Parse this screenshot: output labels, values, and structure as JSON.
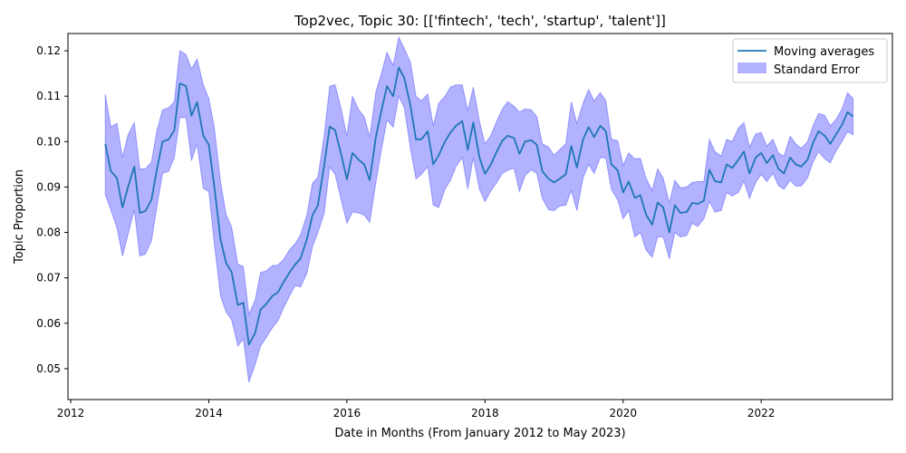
{
  "chart_data": {
    "type": "line",
    "title": "Top2vec, Topic 30: [['fintech', 'tech', 'startup', 'talent']]",
    "xlabel": "Date in Months (From January 2012 to May 2023)",
    "ylabel": "Topic Proportion",
    "xlim": [
      2011.96,
      2023.9
    ],
    "ylim": [
      0.0432,
      0.1238
    ],
    "x_ticks": [
      2012,
      2014,
      2016,
      2018,
      2020,
      2022
    ],
    "y_ticks": [
      0.05,
      0.06,
      0.07,
      0.08,
      0.09,
      0.1,
      0.11,
      0.12
    ],
    "y_tick_labels": [
      "0.05",
      "0.06",
      "0.07",
      "0.08",
      "0.09",
      "0.10",
      "0.11",
      "0.12"
    ],
    "legend_position": "top-right",
    "grid": false,
    "colors": {
      "line": "#1f77b4",
      "band": "#0000ff"
    },
    "legend": [
      {
        "label": "Moving averages",
        "kind": "line"
      },
      {
        "label": "Standard Error",
        "kind": "band"
      }
    ],
    "x": [
      2012.5,
      2012.58,
      2012.67,
      2012.75,
      2012.83,
      2012.92,
      2013.0,
      2013.08,
      2013.17,
      2013.25,
      2013.33,
      2013.42,
      2013.5,
      2013.58,
      2013.67,
      2013.75,
      2013.83,
      2013.92,
      2014.0,
      2014.08,
      2014.17,
      2014.25,
      2014.33,
      2014.42,
      2014.5,
      2014.58,
      2014.67,
      2014.75,
      2014.83,
      2014.92,
      2015.0,
      2015.08,
      2015.17,
      2015.25,
      2015.33,
      2015.42,
      2015.5,
      2015.58,
      2015.67,
      2015.75,
      2015.83,
      2015.92,
      2016.0,
      2016.08,
      2016.17,
      2016.25,
      2016.33,
      2016.42,
      2016.5,
      2016.58,
      2016.67,
      2016.75,
      2016.83,
      2016.92,
      2017.0,
      2017.08,
      2017.17,
      2017.25,
      2017.33,
      2017.42,
      2017.5,
      2017.58,
      2017.67,
      2017.75,
      2017.83,
      2017.92,
      2018.0,
      2018.08,
      2018.17,
      2018.25,
      2018.33,
      2018.42,
      2018.5,
      2018.58,
      2018.67,
      2018.75,
      2018.83,
      2018.92,
      2019.0,
      2019.08,
      2019.17,
      2019.25,
      2019.33,
      2019.42,
      2019.5,
      2019.58,
      2019.67,
      2019.75,
      2019.83,
      2019.92,
      2020.0,
      2020.08,
      2020.17,
      2020.25,
      2020.33,
      2020.42,
      2020.5,
      2020.58,
      2020.67,
      2020.75,
      2020.83,
      2020.92,
      2021.0,
      2021.08,
      2021.17,
      2021.25,
      2021.33,
      2021.42,
      2021.5,
      2021.58,
      2021.67,
      2021.75,
      2021.83,
      2021.92,
      2022.0,
      2022.08,
      2022.17,
      2022.25,
      2022.33,
      2022.42,
      2022.5,
      2022.58,
      2022.67,
      2022.75,
      2022.83,
      2022.92,
      2023.0,
      2023.08,
      2023.17,
      2023.25,
      2023.33
    ],
    "y": [
      0.0995,
      0.0935,
      0.092,
      0.0855,
      0.09,
      0.0945,
      0.0843,
      0.0847,
      0.0872,
      0.094,
      0.1,
      0.1005,
      0.1025,
      0.1128,
      0.1122,
      0.1057,
      0.1087,
      0.1013,
      0.0993,
      0.09,
      0.0785,
      0.0733,
      0.0713,
      0.064,
      0.0645,
      0.0553,
      0.0578,
      0.063,
      0.0642,
      0.066,
      0.0668,
      0.069,
      0.0712,
      0.0729,
      0.0743,
      0.0785,
      0.0837,
      0.086,
      0.0948,
      0.1033,
      0.1025,
      0.097,
      0.0917,
      0.0975,
      0.096,
      0.095,
      0.0915,
      0.101,
      0.1068,
      0.1122,
      0.11,
      0.1163,
      0.114,
      0.108,
      0.1005,
      0.1005,
      0.1023,
      0.095,
      0.097,
      0.1,
      0.102,
      0.1035,
      0.1045,
      0.0982,
      0.1042,
      0.0965,
      0.0929,
      0.0948,
      0.0978,
      0.1002,
      0.1013,
      0.1008,
      0.0973,
      0.1,
      0.1003,
      0.0993,
      0.0935,
      0.0918,
      0.091,
      0.0918,
      0.0928,
      0.099,
      0.0943,
      0.1005,
      0.1032,
      0.101,
      0.1035,
      0.1023,
      0.095,
      0.0937,
      0.0888,
      0.0912,
      0.0876,
      0.0882,
      0.084,
      0.0817,
      0.0866,
      0.0855,
      0.08,
      0.086,
      0.0843,
      0.0845,
      0.0865,
      0.0863,
      0.087,
      0.0938,
      0.0913,
      0.091,
      0.095,
      0.0942,
      0.096,
      0.0978,
      0.093,
      0.0965,
      0.0975,
      0.0953,
      0.097,
      0.094,
      0.093,
      0.0965,
      0.095,
      0.0945,
      0.096,
      0.0997,
      0.1023,
      0.1013,
      0.0995,
      0.1015,
      0.1037,
      0.1065,
      0.1055
    ],
    "upper": [
      0.1105,
      0.1033,
      0.104,
      0.0965,
      0.1015,
      0.1042,
      0.094,
      0.094,
      0.0955,
      0.1025,
      0.107,
      0.1075,
      0.1088,
      0.12,
      0.1192,
      0.116,
      0.1182,
      0.1125,
      0.1095,
      0.103,
      0.0912,
      0.084,
      0.0812,
      0.073,
      0.0725,
      0.062,
      0.065,
      0.0712,
      0.0715,
      0.0727,
      0.0728,
      0.074,
      0.0762,
      0.0775,
      0.0795,
      0.0838,
      0.0908,
      0.0922,
      0.1013,
      0.1122,
      0.1125,
      0.107,
      0.1012,
      0.11,
      0.107,
      0.1055,
      0.101,
      0.111,
      0.115,
      0.1197,
      0.1168,
      0.123,
      0.1205,
      0.1175,
      0.11,
      0.109,
      0.1105,
      0.1035,
      0.1085,
      0.11,
      0.112,
      0.1125,
      0.1125,
      0.1068,
      0.112,
      0.1045,
      0.0995,
      0.1012,
      0.1045,
      0.1072,
      0.1088,
      0.1078,
      0.1065,
      0.1072,
      0.107,
      0.1055,
      0.0995,
      0.0988,
      0.097,
      0.0982,
      0.0995,
      0.1088,
      0.104,
      0.1085,
      0.1115,
      0.109,
      0.1108,
      0.109,
      0.1005,
      0.1002,
      0.0948,
      0.0975,
      0.0962,
      0.0963,
      0.092,
      0.0892,
      0.094,
      0.092,
      0.0865,
      0.0915,
      0.0898,
      0.09,
      0.091,
      0.0912,
      0.0912,
      0.1005,
      0.0978,
      0.0968,
      0.1005,
      0.1,
      0.103,
      0.1042,
      0.0988,
      0.1017,
      0.102,
      0.099,
      0.1005,
      0.0975,
      0.0968,
      0.1012,
      0.0995,
      0.0985,
      0.1,
      0.1035,
      0.1062,
      0.1058,
      0.1035,
      0.1048,
      0.1072,
      0.1108,
      0.1095
    ],
    "lower": [
      0.0883,
      0.085,
      0.081,
      0.0748,
      0.0795,
      0.085,
      0.0748,
      0.0752,
      0.0782,
      0.0858,
      0.093,
      0.0935,
      0.0965,
      0.1053,
      0.1053,
      0.0958,
      0.0995,
      0.0897,
      0.089,
      0.0775,
      0.066,
      0.0625,
      0.0608,
      0.055,
      0.0565,
      0.047,
      0.0508,
      0.055,
      0.0568,
      0.059,
      0.0605,
      0.0633,
      0.066,
      0.0683,
      0.068,
      0.071,
      0.0768,
      0.08,
      0.0842,
      0.0944,
      0.0928,
      0.087,
      0.082,
      0.0845,
      0.0843,
      0.0838,
      0.0822,
      0.091,
      0.0982,
      0.1047,
      0.1032,
      0.11,
      0.1075,
      0.0985,
      0.0918,
      0.0928,
      0.0945,
      0.086,
      0.0855,
      0.0895,
      0.0915,
      0.0945,
      0.0965,
      0.0895,
      0.0965,
      0.0895,
      0.0868,
      0.089,
      0.091,
      0.093,
      0.0937,
      0.0942,
      0.089,
      0.0925,
      0.0938,
      0.093,
      0.0875,
      0.085,
      0.0848,
      0.0858,
      0.086,
      0.0892,
      0.0848,
      0.092,
      0.095,
      0.093,
      0.0965,
      0.0963,
      0.0895,
      0.0872,
      0.083,
      0.0848,
      0.079,
      0.08,
      0.0762,
      0.0745,
      0.079,
      0.079,
      0.0742,
      0.08,
      0.079,
      0.0793,
      0.082,
      0.0813,
      0.083,
      0.0868,
      0.0845,
      0.0848,
      0.0888,
      0.088,
      0.0888,
      0.0913,
      0.0875,
      0.091,
      0.0928,
      0.0912,
      0.093,
      0.0903,
      0.0895,
      0.0915,
      0.0902,
      0.0902,
      0.092,
      0.0955,
      0.0978,
      0.0962,
      0.0953,
      0.0978,
      0.1,
      0.1022,
      0.1015
    ]
  }
}
